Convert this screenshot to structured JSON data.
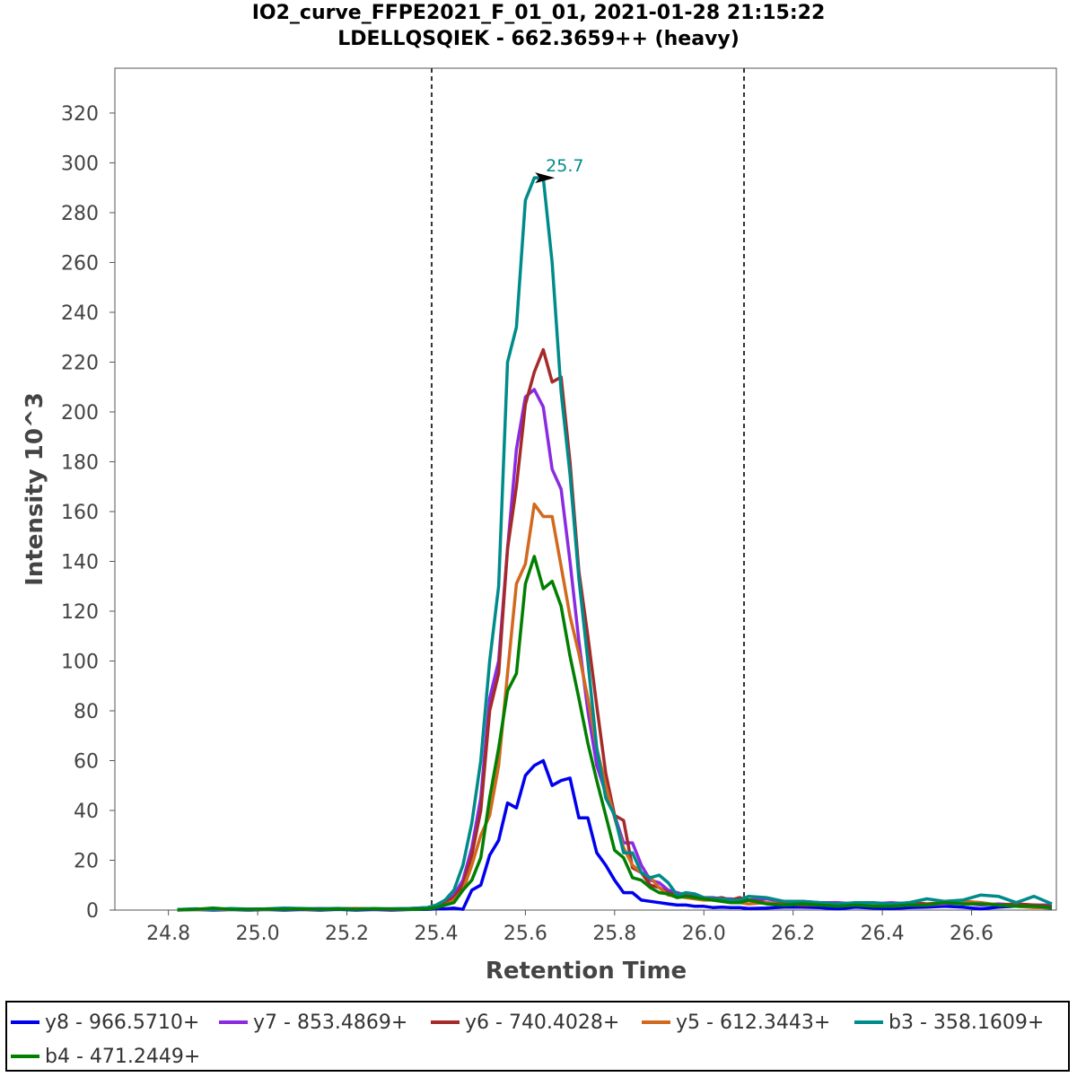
{
  "chart_data": {
    "type": "line",
    "title": "IO2_curve_FFPE2021_F_01_01, 2021-01-28 21:15:22",
    "subtitle": "LDELLQSQIEK - 662.3659++ (heavy)",
    "xlabel": "Retention Time",
    "ylabel": "Intensity 10^3",
    "xlim": [
      24.68,
      26.79
    ],
    "ylim": [
      0,
      338
    ],
    "xticks": [
      24.8,
      25.0,
      25.2,
      25.4,
      25.6,
      25.8,
      26.0,
      26.2,
      26.4,
      26.6
    ],
    "xtick_labels": [
      "24.8",
      "25.0",
      "25.2",
      "25.4",
      "25.6",
      "25.8",
      "26.0",
      "26.2",
      "26.4",
      "26.6"
    ],
    "yticks": [
      0,
      20,
      40,
      60,
      80,
      100,
      120,
      140,
      160,
      180,
      200,
      220,
      240,
      260,
      280,
      300,
      320
    ],
    "ytick_labels": [
      "0",
      "20",
      "40",
      "60",
      "80",
      "100",
      "120",
      "140",
      "160",
      "180",
      "200",
      "220",
      "240",
      "260",
      "280",
      "300",
      "320"
    ],
    "grid": false,
    "legend_position": "bottom",
    "boundaries": [
      25.39,
      26.09
    ],
    "peak_annotation": {
      "x": 25.67,
      "y": 294,
      "label": "25.7",
      "color": "#008b8b"
    },
    "x": [
      24.82,
      24.86,
      24.9,
      24.94,
      24.98,
      25.02,
      25.06,
      25.1,
      25.14,
      25.18,
      25.22,
      25.26,
      25.3,
      25.34,
      25.38,
      25.4,
      25.42,
      25.44,
      25.46,
      25.48,
      25.5,
      25.52,
      25.54,
      25.56,
      25.58,
      25.6,
      25.62,
      25.64,
      25.66,
      25.68,
      25.7,
      25.72,
      25.74,
      25.76,
      25.78,
      25.8,
      25.82,
      25.84,
      25.86,
      25.88,
      25.9,
      25.92,
      25.94,
      25.96,
      25.98,
      26.0,
      26.02,
      26.04,
      26.06,
      26.08,
      26.1,
      26.14,
      26.18,
      26.22,
      26.26,
      26.3,
      26.34,
      26.38,
      26.42,
      26.46,
      26.5,
      26.54,
      26.58,
      26.62,
      26.66,
      26.7,
      26.74,
      26.78
    ],
    "series": [
      {
        "name": "y8 - 966.5710+",
        "color": "#0000ee",
        "values": [
          0,
          0.2,
          0,
          0.2,
          0,
          0.2,
          0,
          0.2,
          0,
          0.3,
          0,
          0.2,
          0,
          0.2,
          0.3,
          0.5,
          0.5,
          0.8,
          0.3,
          8,
          10,
          22,
          28,
          43,
          41,
          54,
          58,
          60,
          50,
          52,
          53,
          37,
          37,
          23,
          18,
          12,
          7,
          7,
          4,
          3.5,
          3,
          2.5,
          2,
          2,
          1.5,
          1.5,
          1,
          1.2,
          1,
          1,
          0.6,
          0.8,
          1.2,
          1.2,
          1,
          0.5,
          1.2,
          0.8,
          0.6,
          1,
          1.2,
          1.5,
          1.2,
          0.5,
          1.2,
          1.6,
          1.1,
          0.8
        ]
      },
      {
        "name": "y7 - 853.4869+",
        "color": "#8a2be2",
        "values": [
          0.1,
          0.5,
          0.3,
          0.5,
          0.2,
          0.5,
          0.3,
          0.4,
          0.6,
          0.4,
          0.5,
          0.4,
          0.5,
          0.6,
          1,
          1.5,
          3,
          6,
          12,
          25,
          45,
          85,
          100,
          145,
          185,
          206,
          209,
          202,
          177,
          169,
          140,
          108,
          80,
          58,
          47,
          38,
          27,
          27,
          18,
          12,
          11,
          8,
          7,
          6,
          6,
          5,
          5,
          4.5,
          4.5,
          4,
          4,
          4.5,
          3.5,
          3.5,
          3,
          3,
          2.5,
          2.5,
          3,
          2.5,
          2,
          2.5,
          3,
          2,
          2.5,
          2,
          2,
          2
        ]
      },
      {
        "name": "y6 - 740.4028+",
        "color": "#a52a2a",
        "values": [
          0.2,
          0.3,
          0.5,
          0.3,
          0.4,
          0.3,
          0.5,
          0.4,
          0.3,
          0.5,
          0.6,
          0.4,
          0.3,
          0.4,
          0.8,
          1.5,
          3,
          5,
          10,
          22,
          40,
          80,
          95,
          145,
          170,
          203,
          216,
          225,
          212,
          214,
          180,
          136,
          110,
          82,
          55,
          38,
          36,
          17,
          15,
          10,
          9,
          7,
          6,
          6.5,
          6,
          5,
          4.5,
          5,
          4,
          5,
          4,
          3,
          2.5,
          2,
          2,
          2,
          2.5,
          2,
          2,
          3,
          2.5,
          3,
          3.5,
          3,
          2,
          2.5,
          2,
          1.5
        ]
      },
      {
        "name": "y5 - 612.3443+",
        "color": "#d2691e",
        "values": [
          0.1,
          0.3,
          0.2,
          0.4,
          0.2,
          0.3,
          0.6,
          0.4,
          0.3,
          0.5,
          0.7,
          0.4,
          0.5,
          0.3,
          0.5,
          1,
          2,
          4,
          8,
          18,
          30,
          38,
          58,
          95,
          131,
          139,
          163,
          158,
          158,
          138,
          118,
          103,
          85,
          65,
          50,
          37,
          25,
          18,
          15,
          13,
          9,
          6,
          5.5,
          5,
          4.5,
          4,
          4,
          3.5,
          3,
          3,
          2.5,
          3,
          2,
          2.5,
          2,
          2,
          2.5,
          2,
          1.5,
          2,
          2,
          3,
          3.5,
          3,
          2,
          1.5,
          1,
          1
        ]
      },
      {
        "name": "b3 - 358.1609+",
        "color": "#008b8b",
        "values": [
          0.2,
          0.5,
          0.3,
          0.6,
          0.4,
          0.5,
          0.8,
          0.6,
          0.5,
          0.7,
          0.4,
          0.6,
          0.5,
          0.6,
          1,
          2,
          4,
          8,
          18,
          35,
          60,
          100,
          130,
          220,
          234,
          285,
          294,
          294,
          260,
          208,
          175,
          133,
          100,
          65,
          45,
          38,
          23,
          23,
          15,
          13,
          14,
          11,
          6,
          7,
          6.5,
          5,
          4.5,
          4.5,
          4,
          4,
          5.5,
          5,
          3.5,
          3.5,
          3,
          2.5,
          3,
          3,
          2.5,
          3,
          4.5,
          3.5,
          4,
          6,
          5.5,
          3,
          5.5,
          2.5
        ]
      },
      {
        "name": "b4 - 471.2449+",
        "color": "#007f00",
        "values": [
          0.1,
          0.3,
          0.8,
          0.3,
          0.2,
          0.4,
          0.3,
          0.5,
          0.3,
          0.4,
          0.3,
          0.5,
          0.4,
          0.3,
          0.5,
          1,
          2,
          3,
          8,
          12,
          21,
          45,
          65,
          88,
          95,
          131,
          142,
          129,
          132,
          122,
          102,
          85,
          67,
          52,
          38,
          24,
          21,
          13,
          12,
          9,
          7,
          6.5,
          5,
          5.5,
          5,
          4.5,
          4,
          3.5,
          3,
          3,
          4,
          2.5,
          2,
          2.5,
          2,
          1.5,
          2,
          1.5,
          1.5,
          2,
          2,
          3,
          2.5,
          2.5,
          2,
          1.5,
          1.5,
          1
        ]
      }
    ]
  }
}
